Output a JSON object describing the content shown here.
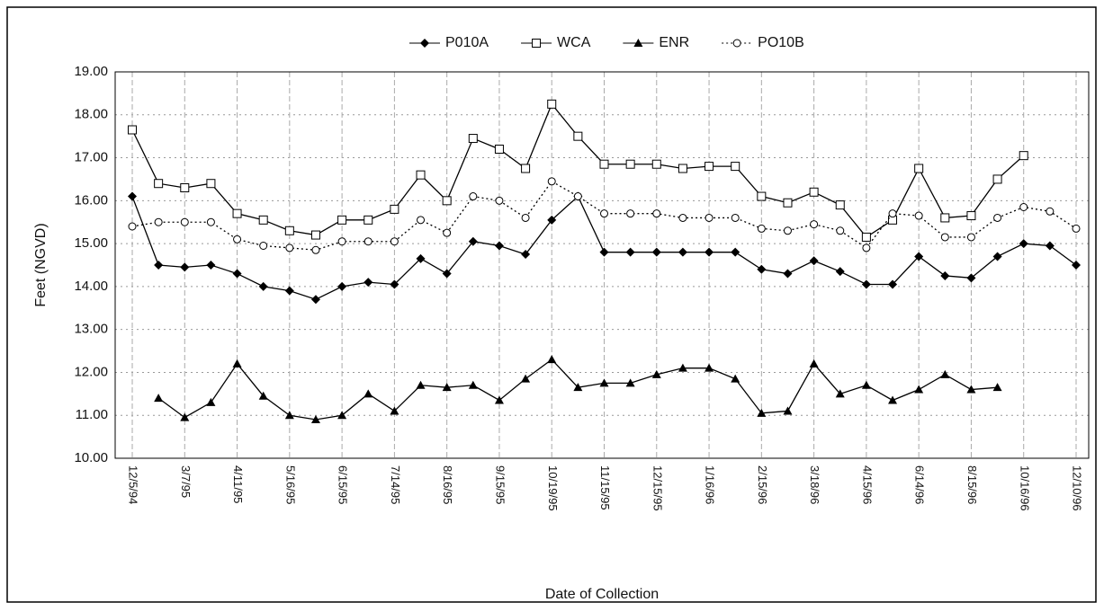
{
  "chart_data": {
    "type": "line",
    "xlabel": "Date of Collection",
    "ylabel": "Feet (NGVD)",
    "categories": [
      "12/5/94",
      null,
      "3/7/95",
      null,
      "4/11/95",
      null,
      "5/16/95",
      null,
      "6/15/95",
      null,
      "7/14/95",
      null,
      "8/16/95",
      null,
      "9/15/95",
      null,
      "10/19/95",
      null,
      "11/15/95",
      null,
      "12/15/95",
      null,
      "1/16/96",
      null,
      "2/15/96",
      null,
      "3/18/96",
      null,
      "4/15/96",
      null,
      "6/14/96",
      null,
      "8/15/96",
      null,
      "10/16/96",
      null,
      "12/10/96"
    ],
    "series": [
      {
        "name": "P010A",
        "color": "#000000",
        "marker": "diamond",
        "dash": "solid",
        "values": [
          16.1,
          14.5,
          14.45,
          14.5,
          14.3,
          14.0,
          13.9,
          13.7,
          14.0,
          14.1,
          14.05,
          14.65,
          14.3,
          15.05,
          14.95,
          14.75,
          15.55,
          16.1,
          14.8,
          14.8,
          14.8,
          14.8,
          14.8,
          14.8,
          14.4,
          14.3,
          14.6,
          14.35,
          14.05,
          14.05,
          14.7,
          14.25,
          14.2,
          14.7,
          15.0,
          14.95,
          14.5
        ]
      },
      {
        "name": "WCA",
        "color": "#000000",
        "marker": "square",
        "dash": "solid",
        "values": [
          17.65,
          16.4,
          16.3,
          16.4,
          15.7,
          15.55,
          15.3,
          15.2,
          15.55,
          15.55,
          15.8,
          16.6,
          16.0,
          17.45,
          17.2,
          16.75,
          18.25,
          17.5,
          16.85,
          16.85,
          16.85,
          16.75,
          16.8,
          16.8,
          16.1,
          15.95,
          16.2,
          15.9,
          15.15,
          15.55,
          16.75,
          15.6,
          15.65,
          16.5,
          17.05,
          null,
          null
        ]
      },
      {
        "name": "ENR",
        "color": "#000000",
        "marker": "triangle",
        "dash": "solid",
        "values": [
          null,
          11.4,
          10.95,
          11.3,
          12.2,
          11.45,
          11.0,
          10.9,
          11.0,
          11.5,
          11.1,
          11.7,
          11.65,
          11.7,
          11.35,
          11.85,
          12.3,
          11.65,
          11.75,
          11.75,
          11.95,
          12.1,
          12.1,
          11.85,
          11.05,
          11.1,
          12.2,
          11.5,
          11.7,
          11.35,
          11.6,
          11.95,
          11.6,
          11.65,
          null,
          null,
          null
        ]
      },
      {
        "name": "PO10B",
        "color": "#000000",
        "marker": "circle",
        "dash": "dotted",
        "values": [
          15.4,
          15.5,
          15.5,
          15.5,
          15.1,
          14.95,
          14.9,
          14.85,
          15.05,
          15.05,
          15.05,
          15.55,
          15.25,
          16.1,
          16.0,
          15.6,
          16.45,
          16.1,
          15.7,
          15.7,
          15.7,
          15.6,
          15.6,
          15.6,
          15.35,
          15.3,
          15.45,
          15.3,
          14.9,
          15.7,
          15.65,
          15.15,
          15.15,
          15.6,
          15.85,
          15.75,
          15.35
        ]
      }
    ],
    "ylim": [
      10,
      19
    ],
    "yticks": [
      {
        "value": 10,
        "label": "10.00"
      },
      {
        "value": 11,
        "label": "11.00"
      },
      {
        "value": 12,
        "label": "12.00"
      },
      {
        "value": 13,
        "label": "13.00"
      },
      {
        "value": 14,
        "label": "14.00"
      },
      {
        "value": 15,
        "label": "15.00"
      },
      {
        "value": 16,
        "label": "16.00"
      },
      {
        "value": 17,
        "label": "17.00"
      },
      {
        "value": 18,
        "label": "18.00"
      },
      {
        "value": 19,
        "label": "19.00"
      }
    ],
    "grid": true,
    "legend": "top"
  }
}
